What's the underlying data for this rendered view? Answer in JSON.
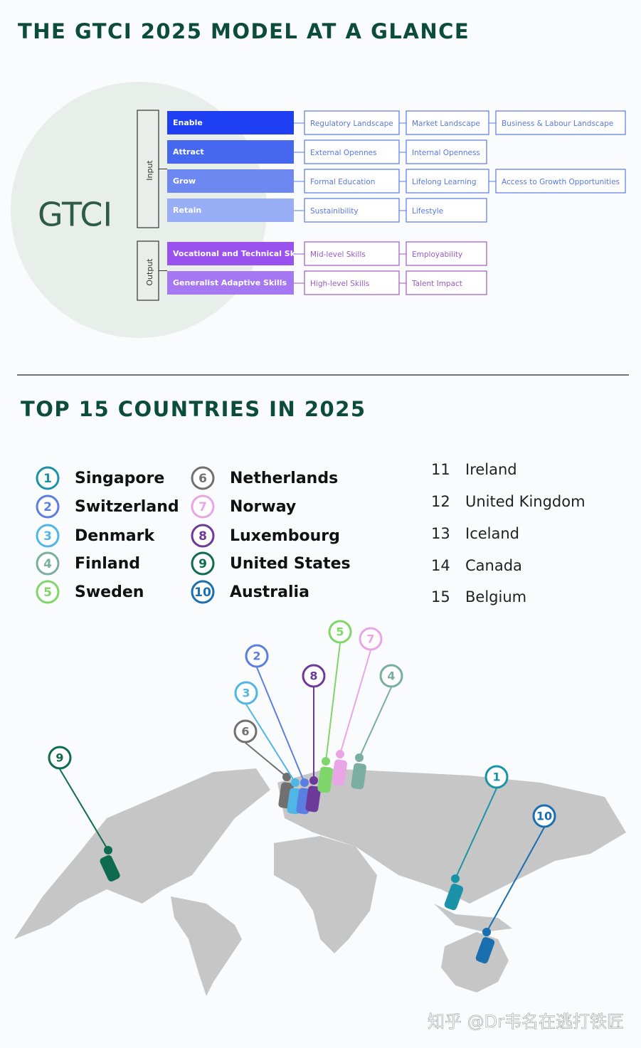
{
  "header": {
    "title": "THE GTCI 2025 MODEL AT A GLANCE"
  },
  "model": {
    "center": "GTCI",
    "groups": [
      {
        "label": "Input",
        "border": "#5a78e8",
        "pillars": [
          {
            "name": "Enable",
            "color": "#1f3ff2",
            "items": [
              "Regulatory Landscape",
              "Market Landscape",
              "Business & Labour Landscape"
            ]
          },
          {
            "name": "Attract",
            "color": "#4668f0",
            "items": [
              "External Opennes",
              "Internal Openness"
            ]
          },
          {
            "name": "Grow",
            "color": "#6e88f2",
            "items": [
              "Formal Education",
              "Lifelong Learning",
              "Access to Growth Opportunities"
            ]
          },
          {
            "name": "Retain",
            "color": "#98aef6",
            "items": [
              "Sustainibility",
              "Lifestyle"
            ]
          }
        ]
      },
      {
        "label": "Output",
        "border": "#9b59c8",
        "pillars": [
          {
            "name": "Vocational and Technical Skill",
            "color": "#9a52ef",
            "items": [
              "Mid-level Skills",
              "Employability"
            ]
          },
          {
            "name": "Generalist Adaptive Skills",
            "color": "#a577f2",
            "items": [
              "High-level Skills",
              "Talent Impact"
            ]
          }
        ]
      }
    ]
  },
  "ranking": {
    "title": "TOP 15 COUNTRIES IN 2025",
    "countries": [
      {
        "rank": 1,
        "name": "Singapore",
        "color": "#1a93a8"
      },
      {
        "rank": 2,
        "name": "Switzerland",
        "color": "#5b7fe0"
      },
      {
        "rank": 3,
        "name": "Denmark",
        "color": "#4fb6e6"
      },
      {
        "rank": 4,
        "name": "Finland",
        "color": "#7aaea0"
      },
      {
        "rank": 5,
        "name": "Sweden",
        "color": "#7fd66a"
      },
      {
        "rank": 6,
        "name": "Netherlands",
        "color": "#707070"
      },
      {
        "rank": 7,
        "name": "Norway",
        "color": "#e8a6e6"
      },
      {
        "rank": 8,
        "name": "Luxembourg",
        "color": "#6b3a9a"
      },
      {
        "rank": 9,
        "name": "United States",
        "color": "#0e6b4f"
      },
      {
        "rank": 10,
        "name": "Australia",
        "color": "#1a6fb0"
      },
      {
        "rank": 11,
        "name": "Ireland"
      },
      {
        "rank": 12,
        "name": "United Kingdom"
      },
      {
        "rank": 13,
        "name": "Iceland"
      },
      {
        "rank": 14,
        "name": "Canada"
      },
      {
        "rank": 15,
        "name": "Belgium"
      }
    ]
  },
  "watermark": "知乎 @Dr韦名在逃打铁匠"
}
